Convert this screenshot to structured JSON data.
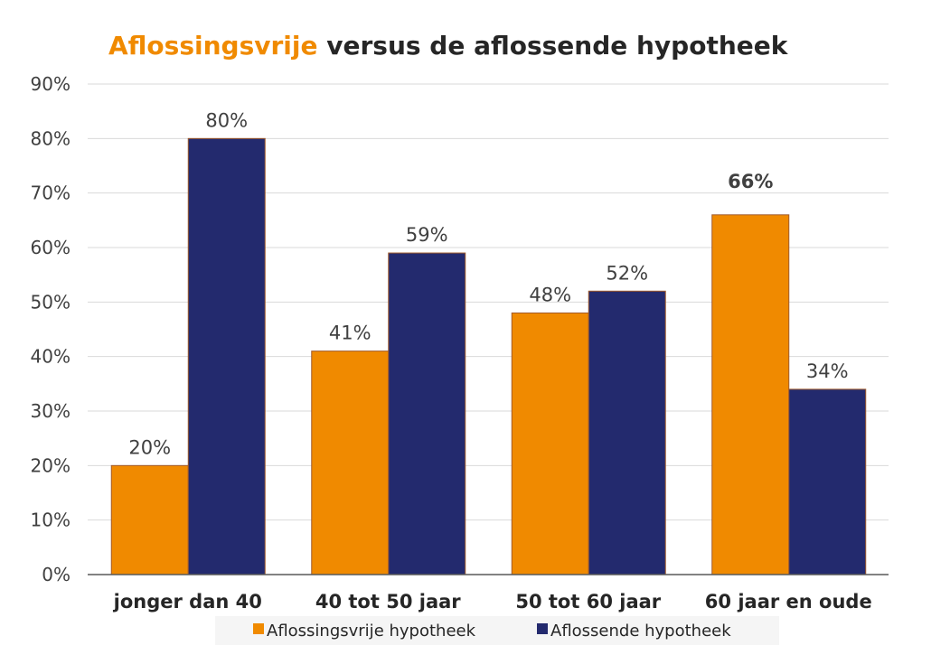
{
  "chart_data": {
    "type": "bar",
    "title_parts": [
      "Aflossingsvrije",
      " versus de aflossende hypotheek"
    ],
    "categories": [
      "jonger dan 40",
      "40 tot 50 jaar",
      "50 tot 60 jaar",
      "60 jaar en oude"
    ],
    "series": [
      {
        "name": "Aflossingsvrije hypotheek",
        "values": [
          20,
          41,
          48,
          66
        ],
        "color": "#F08A00"
      },
      {
        "name": "Aflossende hypotheek",
        "values": [
          80,
          59,
          52,
          34
        ],
        "color": "#232A6E"
      }
    ],
    "ylim": [
      0,
      90
    ],
    "yticks": [
      0,
      10,
      20,
      30,
      40,
      50,
      60,
      70,
      80,
      90
    ],
    "value_suffix": "%",
    "bold_labels": [
      [
        false,
        false,
        false,
        true
      ],
      [
        false,
        false,
        false,
        false
      ]
    ],
    "grid": true,
    "legend_position": "bottom",
    "colors": {
      "title_accent": "#F08A00",
      "title_main": "#262626",
      "grid": "#D9D9D9",
      "axis": "#595959",
      "bar_edge": "#A05A2C",
      "legend_bg": "#F5F5F5"
    }
  }
}
